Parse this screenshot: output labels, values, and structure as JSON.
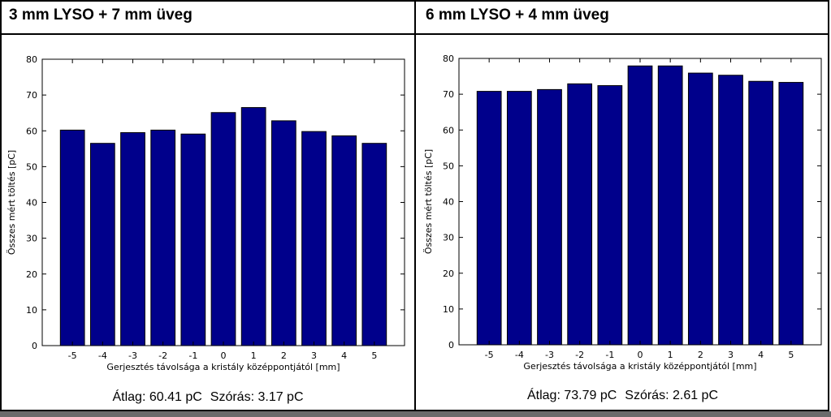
{
  "panels": [
    {
      "title": "3 mm LYSO + 7 mm üveg",
      "stats": {
        "mean": "Átlag: 60.41 pC",
        "std": "Szórás: 3.17 pC"
      }
    },
    {
      "title": "6 mm LYSO + 4 mm üveg",
      "stats": {
        "mean": "Átlag: 73.79 pC",
        "std": "Szórás: 2.61 pC"
      }
    }
  ],
  "colors": {
    "bar": "#00008b",
    "axis": "#000000",
    "background": "#ffffff"
  },
  "chart_data": [
    {
      "type": "bar",
      "categories": [
        "-5",
        "-4",
        "-3",
        "-2",
        "-1",
        "0",
        "1",
        "2",
        "3",
        "4",
        "5"
      ],
      "values": [
        60.2,
        56.5,
        59.5,
        60.2,
        59.1,
        65.1,
        66.5,
        62.8,
        59.8,
        58.6,
        56.5
      ],
      "xlabel": "Gerjesztés távolsága a kristály középpontjától [mm]",
      "ylabel": "Összes mért töltés [pC]",
      "ylim": [
        0,
        80
      ],
      "yticks": [
        "0",
        "10",
        "20",
        "30",
        "40",
        "50",
        "60",
        "70",
        "80"
      ],
      "grid": false
    },
    {
      "type": "bar",
      "categories": [
        "-5",
        "-4",
        "-3",
        "-2",
        "-1",
        "0",
        "1",
        "2",
        "3",
        "4",
        "5"
      ],
      "values": [
        70.8,
        70.8,
        71.3,
        72.9,
        72.4,
        77.9,
        77.9,
        75.9,
        75.3,
        73.6,
        73.3
      ],
      "xlabel": "Gerjesztés távolsága a kristály középpontjától [mm]",
      "ylabel": "Összes mért töltés [pC]",
      "ylim": [
        0,
        80
      ],
      "yticks": [
        "0",
        "10",
        "20",
        "30",
        "40",
        "50",
        "60",
        "70",
        "80"
      ],
      "grid": false
    }
  ]
}
